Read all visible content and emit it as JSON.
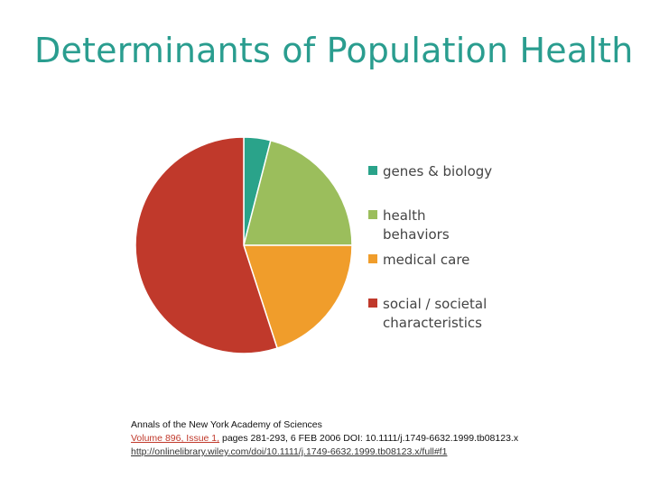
{
  "title": "Determinants of Population Health",
  "chart_data": {
    "type": "pie",
    "title": "",
    "categories": [
      "genes & biology",
      "health behaviors",
      "medical care",
      "social / societal characteristics"
    ],
    "values": [
      4,
      21,
      20,
      55
    ],
    "colors": [
      "#2aa38a",
      "#9bbe5c",
      "#f09d2b",
      "#c0392b"
    ],
    "legend_position": "right",
    "start_angle": "top",
    "direction": "clockwise"
  },
  "legend": {
    "items": [
      {
        "label": "genes & biology",
        "color": "#2aa38a"
      },
      {
        "label": "health behaviors",
        "color": "#9bbe5c"
      },
      {
        "label": "medical care",
        "color": "#f09d2b"
      },
      {
        "label": "social / societal characteristics",
        "color": "#c0392b"
      }
    ]
  },
  "citation": {
    "journal": "Annals of the New York Academy of Sciences",
    "volume_link": "Volume 896, Issue 1,",
    "volume_rest": " pages 281-293, 6 FEB 2006 DOI: 10.1111/j.1749-6632.1999.tb08123.x",
    "url": "http://onlinelibrary.wiley.com/doi/10.1111/j.1749-6632.1999.tb08123.x/full#f1"
  }
}
